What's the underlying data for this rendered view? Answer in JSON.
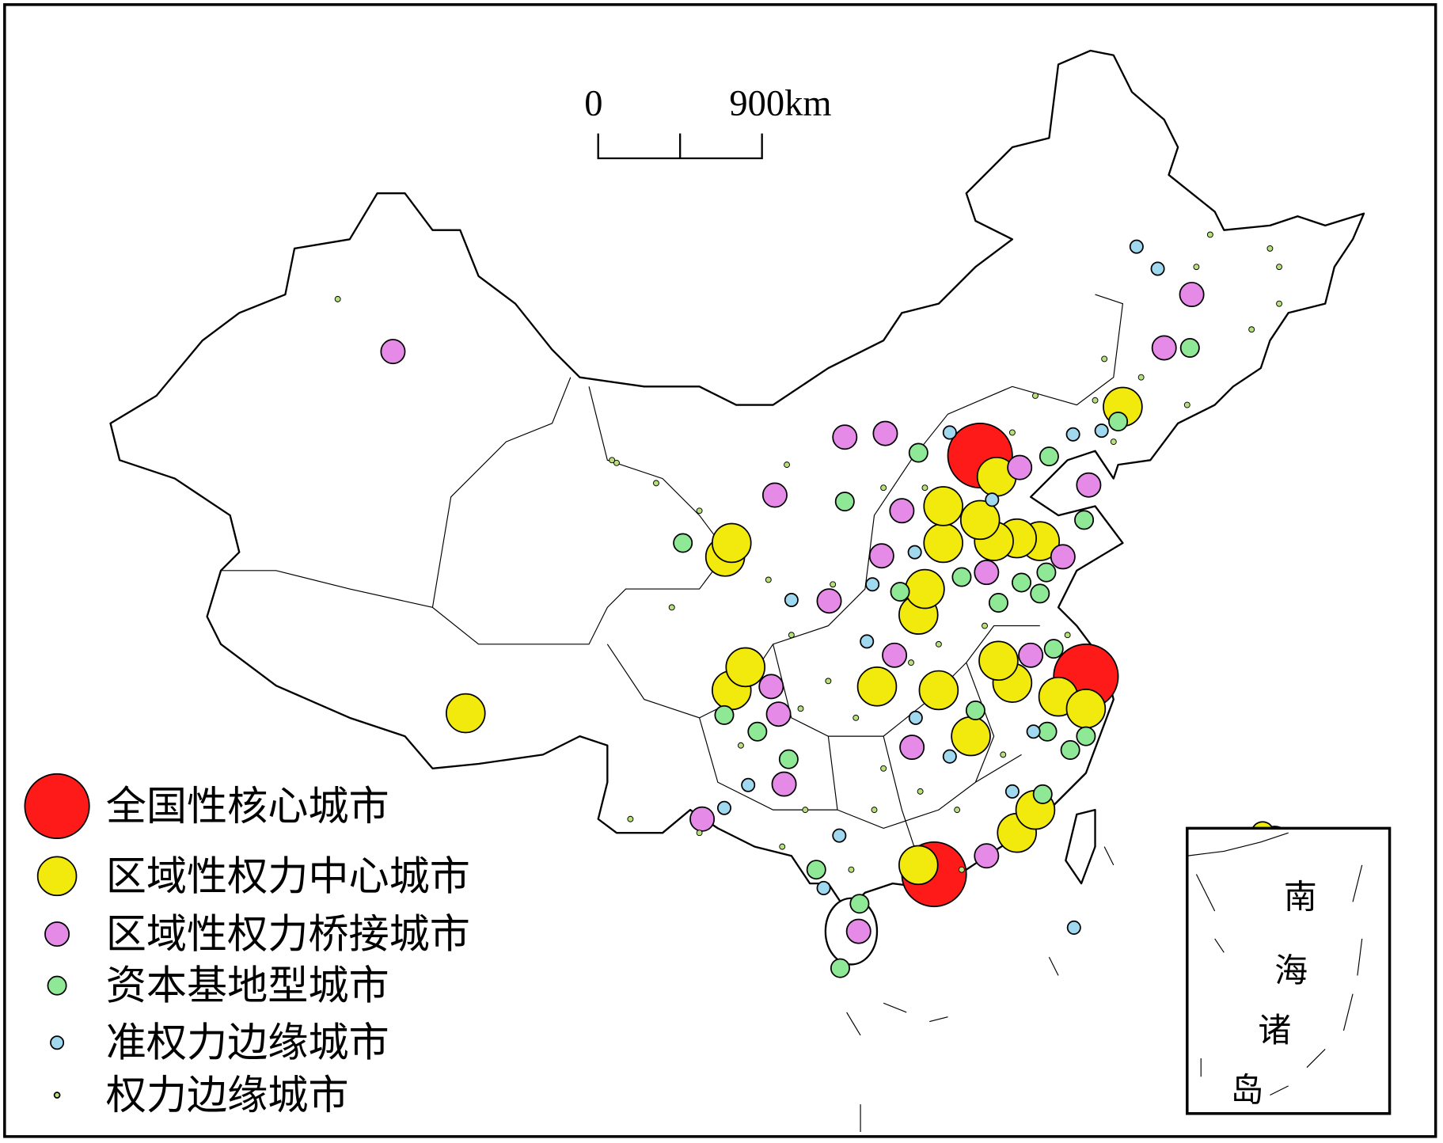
{
  "scale_bar": {
    "start": "0",
    "end": "900km"
  },
  "legend": {
    "items": [
      "全国性核心城市",
      "区域性权力中心城市",
      "区域性权力桥接城市",
      "资本基地型城市",
      "准权力边缘城市",
      "权力边缘城市"
    ]
  },
  "inset": {
    "label": [
      "南",
      "海",
      "诸",
      "岛"
    ]
  }
}
